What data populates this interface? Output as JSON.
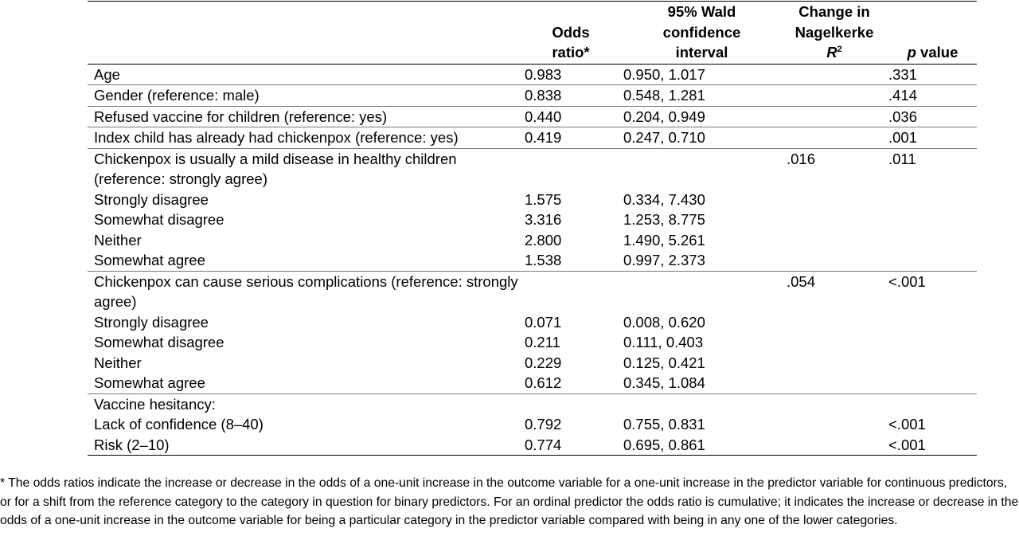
{
  "header": {
    "variable": "",
    "odds_ratio_line1": "Odds",
    "odds_ratio_line2": "ratio*",
    "ci_line1": "95% Wald",
    "ci_line2": "confidence",
    "ci_line3": "interval",
    "r2_line1": "Change in",
    "r2_line2": "Nagelkerke",
    "r2_symbol": "R",
    "r2_superscript": "2",
    "p_italic": "p",
    "p_rest": " value"
  },
  "rows": [
    {
      "label": "Age",
      "or": "0.983",
      "ci": "0.950, 1.017",
      "r2": "",
      "p": ".331",
      "sub": false,
      "group_start": true
    },
    {
      "label": "Gender (reference: male)",
      "or": "0.838",
      "ci": "0.548, 1.281",
      "r2": "",
      "p": ".414",
      "sub": false,
      "group_start": true
    },
    {
      "label": "Refused vaccine for children (reference: yes)",
      "or": "0.440",
      "ci": "0.204, 0.949",
      "r2": "",
      "p": ".036",
      "sub": false,
      "group_start": true
    },
    {
      "label": "Index child has already had chickenpox (reference: yes)",
      "or": "0.419",
      "ci": "0.247, 0.710",
      "r2": "",
      "p": ".001",
      "sub": false,
      "group_start": true
    },
    {
      "label": "Chickenpox is usually a mild disease in healthy children (reference: strongly agree)",
      "or": "",
      "ci": "",
      "r2": ".016",
      "p": ".011",
      "sub": false,
      "group_start": true
    },
    {
      "label": "Strongly disagree",
      "or": "1.575",
      "ci": "0.334, 7.430",
      "r2": "",
      "p": "",
      "sub": true,
      "group_start": false
    },
    {
      "label": "Somewhat disagree",
      "or": "3.316",
      "ci": "1.253, 8.775",
      "r2": "",
      "p": "",
      "sub": true,
      "group_start": false
    },
    {
      "label": "Neither",
      "or": "2.800",
      "ci": "1.490, 5.261",
      "r2": "",
      "p": "",
      "sub": true,
      "group_start": false
    },
    {
      "label": "Somewhat agree",
      "or": "1.538",
      "ci": "0.997, 2.373",
      "r2": "",
      "p": "",
      "sub": true,
      "group_start": false
    },
    {
      "label": "Chickenpox can cause serious complications (reference: strongly agree)",
      "or": "",
      "ci": "",
      "r2": ".054",
      "p": "<.001",
      "sub": false,
      "group_start": true
    },
    {
      "label": "Strongly disagree",
      "or": "0.071",
      "ci": "0.008, 0.620",
      "r2": "",
      "p": "",
      "sub": true,
      "group_start": false
    },
    {
      "label": "Somewhat disagree",
      "or": "0.211",
      "ci": "0.111, 0.403",
      "r2": "",
      "p": "",
      "sub": true,
      "group_start": false
    },
    {
      "label": "Neither",
      "or": "0.229",
      "ci": "0.125, 0.421",
      "r2": "",
      "p": "",
      "sub": true,
      "group_start": false
    },
    {
      "label": "Somewhat agree",
      "or": "0.612",
      "ci": "0.345, 1.084",
      "r2": "",
      "p": "",
      "sub": true,
      "group_start": false
    },
    {
      "label": "Vaccine hesitancy:",
      "or": "",
      "ci": "",
      "r2": "",
      "p": "",
      "sub": false,
      "group_start": true
    },
    {
      "label": "Lack of confidence (8–40)",
      "or": "0.792",
      "ci": "0.755, 0.831",
      "r2": "",
      "p": "<.001",
      "sub": true,
      "group_start": false
    },
    {
      "label": "Risk (2–10)",
      "or": "0.774",
      "ci": "0.695, 0.861",
      "r2": "",
      "p": "<.001",
      "sub": true,
      "group_start": false
    }
  ],
  "footnote": "* The odds ratios indicate the increase or decrease in the odds of a one-unit increase in the outcome variable for a one-unit increase in the predictor variable for continuous predictors, or for a shift from the reference category to the category in question for binary predictors. For an ordinal predictor the odds ratio is cumulative; it indicates the increase or decrease in the odds of a one-unit increase in the outcome variable for being a particular category in the predictor variable compared with being in any one of the lower categories."
}
